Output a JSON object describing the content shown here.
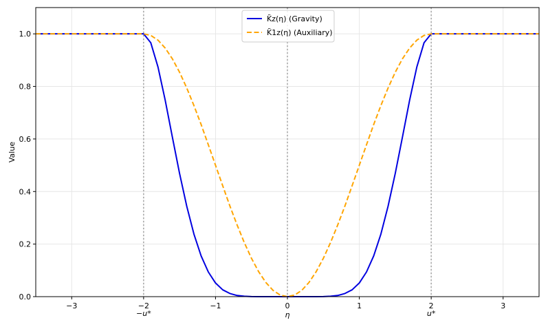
{
  "chart_data": {
    "type": "line",
    "title": "",
    "xlabel": "η",
    "ylabel": "Value",
    "xlim": [
      -3.5,
      3.5
    ],
    "ylim": [
      0.0,
      1.1
    ],
    "grid": true,
    "legend_position": "top-center",
    "x_ticks": [
      {
        "value": -3,
        "label": "−3"
      },
      {
        "value": -2,
        "label": "−2"
      },
      {
        "value": -1,
        "label": "−1"
      },
      {
        "value": 0,
        "label": "0"
      },
      {
        "value": 1,
        "label": "1"
      },
      {
        "value": 2,
        "label": "2"
      },
      {
        "value": 3,
        "label": "3"
      }
    ],
    "y_ticks": [
      {
        "value": 0.0,
        "label": "0.0"
      },
      {
        "value": 0.2,
        "label": "0.2"
      },
      {
        "value": 0.4,
        "label": "0.4"
      },
      {
        "value": 0.6,
        "label": "0.6"
      },
      {
        "value": 0.8,
        "label": "0.8"
      },
      {
        "value": 1.0,
        "label": "1.0"
      }
    ],
    "reference_lines": [
      {
        "x": -2,
        "label": "−u*"
      },
      {
        "x": 0,
        "label": ""
      },
      {
        "x": 2,
        "label": "u*"
      }
    ],
    "series": [
      {
        "name": "K̃z(η) (Gravity)",
        "color": "#0000e0",
        "style": "solid",
        "x": [
          -3.5,
          -3.0,
          -2.5,
          -2.0,
          -1.9,
          -1.8,
          -1.7,
          -1.6,
          -1.5,
          -1.4,
          -1.3,
          -1.2,
          -1.1,
          -1.0,
          -0.9,
          -0.8,
          -0.7,
          -0.6,
          -0.5,
          -0.4,
          -0.3,
          -0.2,
          -0.1,
          0.0,
          0.1,
          0.2,
          0.3,
          0.4,
          0.5,
          0.6,
          0.7,
          0.8,
          0.9,
          1.0,
          1.1,
          1.2,
          1.3,
          1.4,
          1.5,
          1.6,
          1.7,
          1.8,
          1.9,
          2.0,
          2.5,
          3.0,
          3.5
        ],
        "y": [
          1.0,
          1.0,
          1.0,
          1.0,
          0.966,
          0.874,
          0.748,
          0.607,
          0.469,
          0.344,
          0.238,
          0.155,
          0.094,
          0.052,
          0.026,
          0.012,
          0.0045,
          0.0015,
          0.0004,
          0.0001,
          0.0,
          0.0,
          0.0,
          0.0,
          0.0,
          0.0,
          0.0,
          0.0001,
          0.0004,
          0.0015,
          0.0045,
          0.012,
          0.026,
          0.052,
          0.094,
          0.155,
          0.238,
          0.344,
          0.469,
          0.607,
          0.748,
          0.874,
          0.966,
          1.0,
          1.0,
          1.0,
          1.0
        ]
      },
      {
        "name": "K̃1z(η) (Auxiliary)",
        "color": "#ffa500",
        "style": "dashed",
        "x": [
          -3.5,
          -3.0,
          -2.5,
          -2.0,
          -1.9,
          -1.8,
          -1.7,
          -1.6,
          -1.5,
          -1.4,
          -1.3,
          -1.2,
          -1.1,
          -1.0,
          -0.9,
          -0.8,
          -0.7,
          -0.6,
          -0.5,
          -0.4,
          -0.3,
          -0.2,
          -0.1,
          0.0,
          0.1,
          0.2,
          0.3,
          0.4,
          0.5,
          0.6,
          0.7,
          0.8,
          0.9,
          1.0,
          1.1,
          1.2,
          1.3,
          1.4,
          1.5,
          1.6,
          1.7,
          1.8,
          1.9,
          2.0,
          2.5,
          3.0,
          3.5
        ],
        "y": [
          1.0,
          1.0,
          1.0,
          1.0,
          0.994,
          0.976,
          0.946,
          0.905,
          0.854,
          0.794,
          0.727,
          0.655,
          0.578,
          0.5,
          0.422,
          0.345,
          0.273,
          0.206,
          0.146,
          0.095,
          0.054,
          0.024,
          0.006,
          0.0,
          0.006,
          0.024,
          0.054,
          0.095,
          0.146,
          0.206,
          0.273,
          0.345,
          0.422,
          0.5,
          0.578,
          0.655,
          0.727,
          0.794,
          0.854,
          0.905,
          0.946,
          0.976,
          0.994,
          1.0,
          1.0,
          1.0,
          1.0
        ]
      }
    ]
  }
}
